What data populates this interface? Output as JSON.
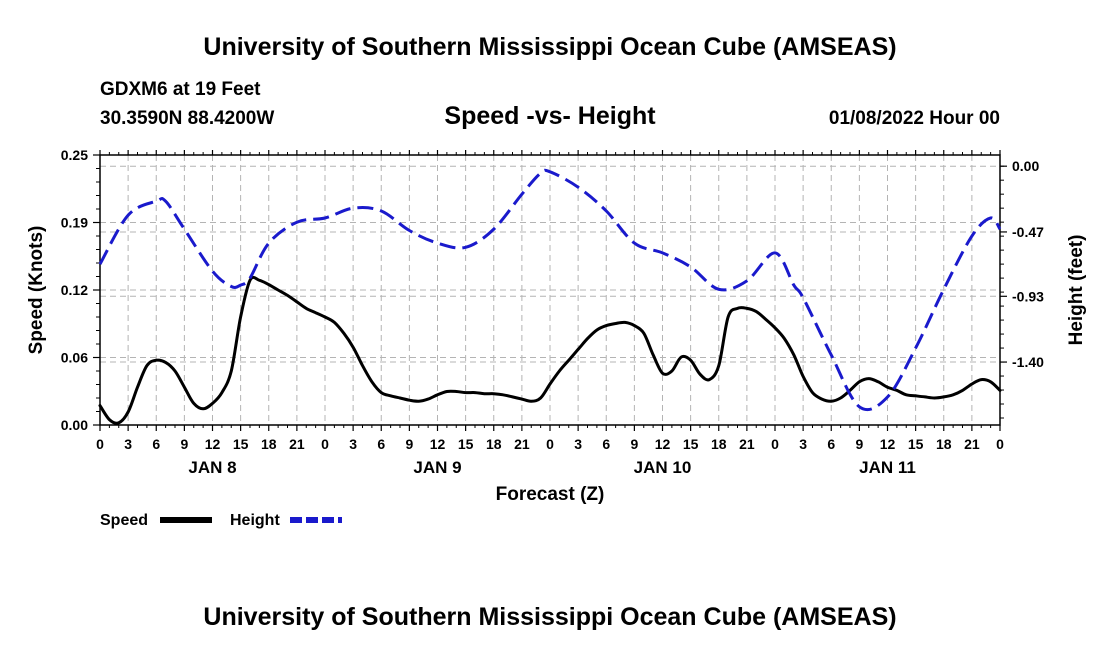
{
  "header": {
    "title": "University of Southern Mississippi Ocean Cube (AMSEAS)",
    "station": "GDXM6 at 19 Feet",
    "coords": "30.3590N  88.4200W",
    "chart_title": "Speed -vs- Height",
    "date": "01/08/2022 Hour 00"
  },
  "footer": {
    "title": "University of Southern Mississippi Ocean Cube (AMSEAS)"
  },
  "colors": {
    "speed": "#000000",
    "height": "#1a1acc",
    "grid": "#b4b4b4"
  },
  "chart_data": {
    "type": "line",
    "title": "Speed -vs- Height",
    "xlabel": "Forecast (Z)",
    "ylabel": "Speed (Knots)",
    "y2label": "Height (feet)",
    "xlim": [
      0,
      96
    ],
    "ylim": [
      0,
      0.25
    ],
    "y2lim": [
      -1.85,
      0.08
    ],
    "x_ticks": [
      0,
      3,
      6,
      9,
      12,
      15,
      18,
      21,
      24,
      27,
      30,
      33,
      36,
      39,
      42,
      45,
      48,
      51,
      54,
      57,
      60,
      63,
      66,
      69,
      72,
      75,
      78,
      81,
      84,
      87,
      90,
      93,
      96
    ],
    "x_tick_labels": [
      "0",
      "3",
      "6",
      "9",
      "12",
      "15",
      "18",
      "21",
      "0",
      "3",
      "6",
      "9",
      "12",
      "15",
      "18",
      "21",
      "0",
      "3",
      "6",
      "9",
      "12",
      "15",
      "18",
      "21",
      "0",
      "3",
      "6",
      "9",
      "12",
      "15",
      "18",
      "21",
      "0"
    ],
    "day_labels": [
      {
        "x": 12,
        "label": "JAN 8"
      },
      {
        "x": 36,
        "label": "JAN 9"
      },
      {
        "x": 60,
        "label": "JAN 10"
      },
      {
        "x": 84,
        "label": "JAN 11"
      }
    ],
    "y_ticks": [
      0,
      0.0625,
      0.125,
      0.1875,
      0.25
    ],
    "y_tick_labels": [
      "0.00",
      "0.06",
      "0.12",
      "0.19",
      "0.25"
    ],
    "y2_ticks": [
      0,
      -0.47,
      -0.93,
      -1.4
    ],
    "y2_tick_labels": [
      "0.00",
      "-0.47",
      "-0.93",
      "-1.40"
    ],
    "series": [
      {
        "name": "Speed",
        "axis": "left",
        "style": "solid",
        "x": [
          0,
          1,
          2,
          3,
          4,
          5,
          6,
          7,
          8,
          9,
          10,
          11,
          12,
          13,
          14,
          15,
          16,
          17,
          18,
          19,
          20,
          21,
          22,
          23,
          24,
          25,
          26,
          27,
          28,
          29,
          30,
          31,
          32,
          33,
          34,
          35,
          36,
          37,
          38,
          39,
          40,
          41,
          42,
          43,
          44,
          45,
          46,
          47,
          48,
          49,
          50,
          51,
          52,
          53,
          54,
          55,
          56,
          57,
          58,
          59,
          60,
          61,
          62,
          63,
          64,
          65,
          66,
          67,
          68,
          69,
          70,
          71,
          72,
          73,
          74,
          75,
          76,
          77,
          78,
          79,
          80,
          81,
          82,
          83,
          84,
          85,
          86,
          87,
          88,
          89,
          90,
          91,
          92,
          93,
          94,
          95,
          96
        ],
        "values": [
          0.018,
          0.005,
          0.002,
          0.012,
          0.035,
          0.055,
          0.06,
          0.058,
          0.05,
          0.035,
          0.02,
          0.015,
          0.02,
          0.03,
          0.05,
          0.1,
          0.134,
          0.134,
          0.13,
          0.125,
          0.12,
          0.114,
          0.108,
          0.104,
          0.1,
          0.095,
          0.085,
          0.072,
          0.055,
          0.04,
          0.03,
          0.027,
          0.025,
          0.023,
          0.022,
          0.024,
          0.028,
          0.031,
          0.031,
          0.03,
          0.03,
          0.029,
          0.029,
          0.028,
          0.026,
          0.024,
          0.022,
          0.025,
          0.038,
          0.05,
          0.06,
          0.07,
          0.08,
          0.088,
          0.092,
          0.094,
          0.095,
          0.092,
          0.085,
          0.065,
          0.048,
          0.05,
          0.063,
          0.06,
          0.047,
          0.042,
          0.055,
          0.1,
          0.108,
          0.108,
          0.105,
          0.098,
          0.09,
          0.08,
          0.065,
          0.045,
          0.03,
          0.024,
          0.022,
          0.025,
          0.032,
          0.04,
          0.043,
          0.04,
          0.035,
          0.032,
          0.028,
          0.027,
          0.026,
          0.025,
          0.026,
          0.028,
          0.032,
          0.038,
          0.042,
          0.04,
          0.032
        ]
      },
      {
        "name": "Height",
        "axis": "right",
        "style": "dashed",
        "x": [
          0,
          3,
          6,
          7,
          9,
          12,
          14,
          15,
          16,
          18,
          21,
          24,
          27,
          30,
          33,
          36,
          39,
          42,
          45,
          47,
          48,
          51,
          54,
          57,
          60,
          63,
          66,
          69,
          72,
          74,
          75,
          78,
          81,
          84,
          87,
          90,
          93,
          95,
          96
        ],
        "values": [
          -0.7,
          -0.35,
          -0.25,
          -0.25,
          -0.45,
          -0.75,
          -0.86,
          -0.85,
          -0.8,
          -0.55,
          -0.4,
          -0.37,
          -0.3,
          -0.32,
          -0.46,
          -0.55,
          -0.58,
          -0.45,
          -0.2,
          -0.05,
          -0.04,
          -0.15,
          -0.32,
          -0.55,
          -0.62,
          -0.72,
          -0.88,
          -0.82,
          -0.62,
          -0.85,
          -0.94,
          -1.35,
          -1.72,
          -1.65,
          -1.3,
          -0.88,
          -0.5,
          -0.37,
          -0.45
        ]
      }
    ],
    "legend": {
      "position": "bottom-left",
      "entries": [
        {
          "label": "Speed",
          "style": "solid"
        },
        {
          "label": "Height",
          "style": "dashed"
        }
      ]
    },
    "grid": true
  }
}
